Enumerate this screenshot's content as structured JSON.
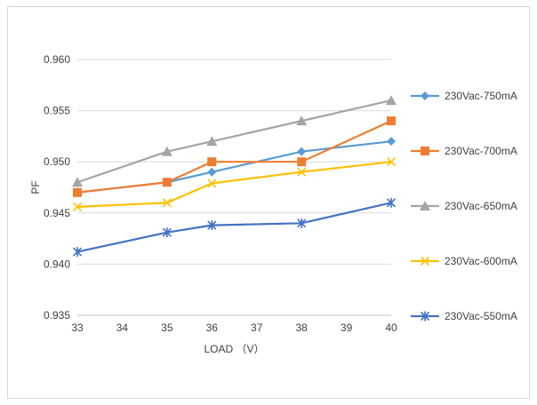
{
  "chart_data": {
    "type": "line",
    "title": "",
    "xlabel": "LOAD （V）",
    "ylabel": "PF",
    "x": [
      33,
      35,
      36,
      38,
      40
    ],
    "xlim": [
      33,
      40
    ],
    "x_ticks": [
      "33",
      "34",
      "35",
      "36",
      "37",
      "38",
      "39",
      "40"
    ],
    "ylim": [
      0.935,
      0.96
    ],
    "y_ticks": [
      "0.935",
      "0.940",
      "0.945",
      "0.950",
      "0.955",
      "0.960"
    ],
    "grid": "horizontal",
    "legend_position": "right",
    "series": [
      {
        "name": "230Vac-750mA",
        "color": "#5b9bd5",
        "marker": "diamond",
        "values": [
          0.947,
          0.948,
          0.949,
          0.951,
          0.952
        ]
      },
      {
        "name": "230Vac-700mA",
        "color": "#ed7d31",
        "marker": "square",
        "values": [
          0.947,
          0.948,
          0.95,
          0.95,
          0.954
        ]
      },
      {
        "name": "230Vac-650mA",
        "color": "#a5a5a5",
        "marker": "triangle",
        "values": [
          0.948,
          0.951,
          0.952,
          0.954,
          0.956
        ]
      },
      {
        "name": "230Vac-600mA",
        "color": "#ffc000",
        "marker": "x",
        "values": [
          0.9456,
          0.946,
          0.9479,
          0.949,
          0.95
        ]
      },
      {
        "name": "230Vac-550mA",
        "color": "#4472c4",
        "marker": "star",
        "values": [
          0.9412,
          0.9431,
          0.9438,
          0.944,
          0.946
        ]
      }
    ]
  }
}
